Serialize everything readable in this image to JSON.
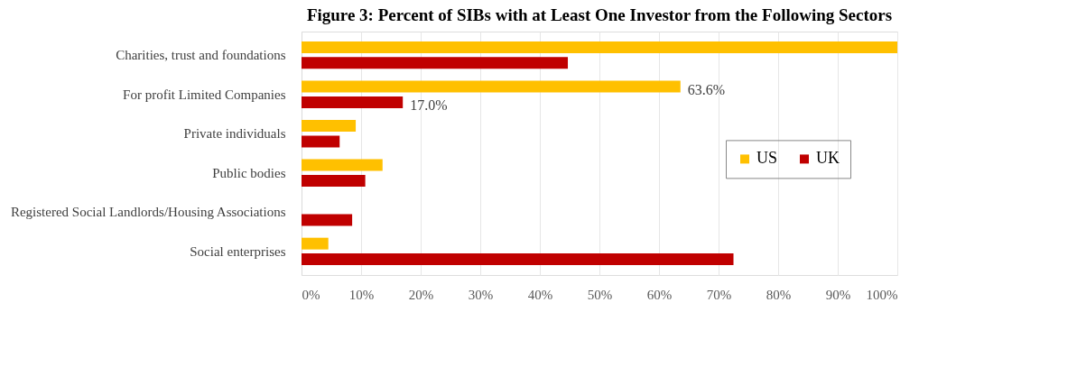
{
  "chart_data": {
    "type": "bar",
    "orientation": "horizontal",
    "title": "Figure 3: Percent of SIBs with at Least One Investor from the Following Sectors",
    "categories": [
      "Charities, trust and foundations",
      "For profit Limited Companies",
      "Private individuals",
      "Public bodies",
      "Registered Social Landlords/Housing Associations",
      "Social enterprises"
    ],
    "series": [
      {
        "name": "US",
        "color": "#ffc000",
        "values": [
          100,
          63.6,
          9.1,
          13.6,
          null,
          4.5
        ],
        "value_labels": [
          null,
          "63.6%",
          null,
          null,
          null,
          null
        ]
      },
      {
        "name": "UK",
        "color": "#c00000",
        "values": [
          44.7,
          17.0,
          6.4,
          10.7,
          8.5,
          72.5
        ],
        "value_labels": [
          null,
          "17.0%",
          null,
          null,
          null,
          null
        ]
      }
    ],
    "xlim": [
      0,
      100
    ],
    "xticks": [
      {
        "value": 0,
        "label": "0%"
      },
      {
        "value": 10,
        "label": "10%"
      },
      {
        "value": 20,
        "label": "20%"
      },
      {
        "value": 30,
        "label": "30%"
      },
      {
        "value": 40,
        "label": "40%"
      },
      {
        "value": 50,
        "label": "50%"
      },
      {
        "value": 60,
        "label": "60%"
      },
      {
        "value": 70,
        "label": "70%"
      },
      {
        "value": 80,
        "label": "80%"
      },
      {
        "value": 90,
        "label": "90%"
      },
      {
        "value": 100,
        "label": "100%"
      }
    ],
    "grid": "x",
    "legend": "right"
  }
}
